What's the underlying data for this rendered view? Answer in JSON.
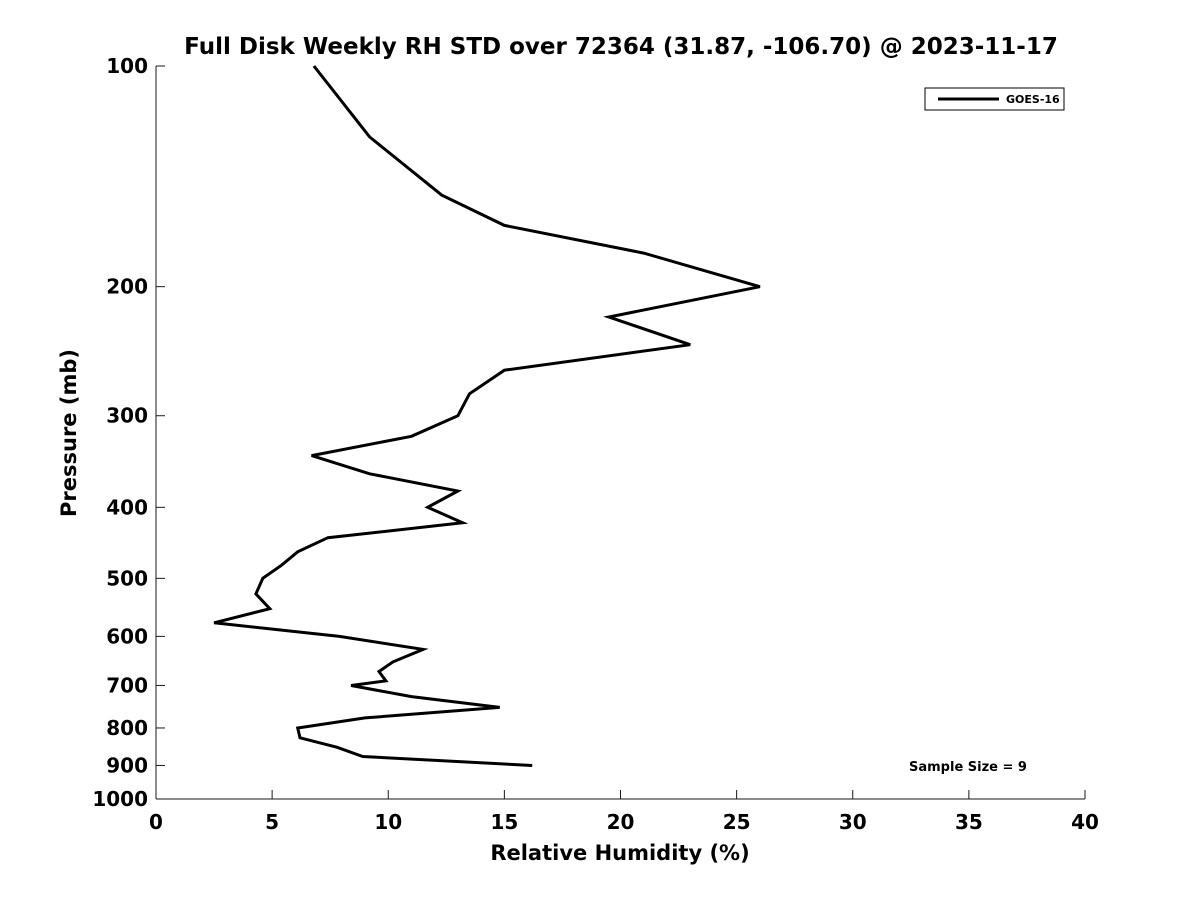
{
  "chart_data": {
    "type": "line",
    "title": "Full Disk Weekly RH STD over 72364 (31.87, -106.70) @ 2023-11-17",
    "xlabel": "Relative Humidity (%)",
    "ylabel": "Pressure (mb)",
    "xlim": [
      0,
      40
    ],
    "ylim": [
      100,
      1000
    ],
    "y_scale": "log",
    "y_reversed": true,
    "grid": false,
    "legend_position": "top-right",
    "x_ticks": [
      0,
      5,
      10,
      15,
      20,
      25,
      30,
      35,
      40
    ],
    "x_tick_labels": [
      "0",
      "5",
      "10",
      "15",
      "20",
      "25",
      "30",
      "35",
      "40"
    ],
    "y_ticks": [
      100,
      200,
      300,
      400,
      500,
      600,
      700,
      800,
      900,
      1000
    ],
    "y_tick_labels": [
      "100",
      "200",
      "300",
      "400",
      "500",
      "600",
      "700",
      "800",
      "900",
      "1000"
    ],
    "series": [
      {
        "name": "GOES-16",
        "color": "#000000",
        "points": [
          {
            "x": 6.8,
            "y": 100
          },
          {
            "x": 9.2,
            "y": 125
          },
          {
            "x": 12.3,
            "y": 150
          },
          {
            "x": 15.0,
            "y": 165
          },
          {
            "x": 21.0,
            "y": 180
          },
          {
            "x": 26.0,
            "y": 200
          },
          {
            "x": 19.5,
            "y": 220
          },
          {
            "x": 23.0,
            "y": 240
          },
          {
            "x": 15.0,
            "y": 260
          },
          {
            "x": 13.5,
            "y": 280
          },
          {
            "x": 13.0,
            "y": 300
          },
          {
            "x": 11.0,
            "y": 320
          },
          {
            "x": 6.7,
            "y": 340
          },
          {
            "x": 9.2,
            "y": 360
          },
          {
            "x": 13.0,
            "y": 380
          },
          {
            "x": 11.7,
            "y": 400
          },
          {
            "x": 13.2,
            "y": 420
          },
          {
            "x": 7.4,
            "y": 440
          },
          {
            "x": 6.1,
            "y": 460
          },
          {
            "x": 5.4,
            "y": 480
          },
          {
            "x": 4.6,
            "y": 500
          },
          {
            "x": 4.3,
            "y": 525
          },
          {
            "x": 4.9,
            "y": 550
          },
          {
            "x": 2.5,
            "y": 575
          },
          {
            "x": 7.9,
            "y": 600
          },
          {
            "x": 11.5,
            "y": 625
          },
          {
            "x": 10.2,
            "y": 650
          },
          {
            "x": 9.6,
            "y": 670
          },
          {
            "x": 9.9,
            "y": 690
          },
          {
            "x": 8.4,
            "y": 700
          },
          {
            "x": 11.0,
            "y": 725
          },
          {
            "x": 14.8,
            "y": 750
          },
          {
            "x": 9.0,
            "y": 775
          },
          {
            "x": 6.1,
            "y": 800
          },
          {
            "x": 6.2,
            "y": 825
          },
          {
            "x": 7.8,
            "y": 850
          },
          {
            "x": 8.9,
            "y": 875
          },
          {
            "x": 16.2,
            "y": 900
          }
        ]
      }
    ],
    "annotations": [
      {
        "text": "Sample Size = 9",
        "position": "bottom-right"
      }
    ]
  }
}
